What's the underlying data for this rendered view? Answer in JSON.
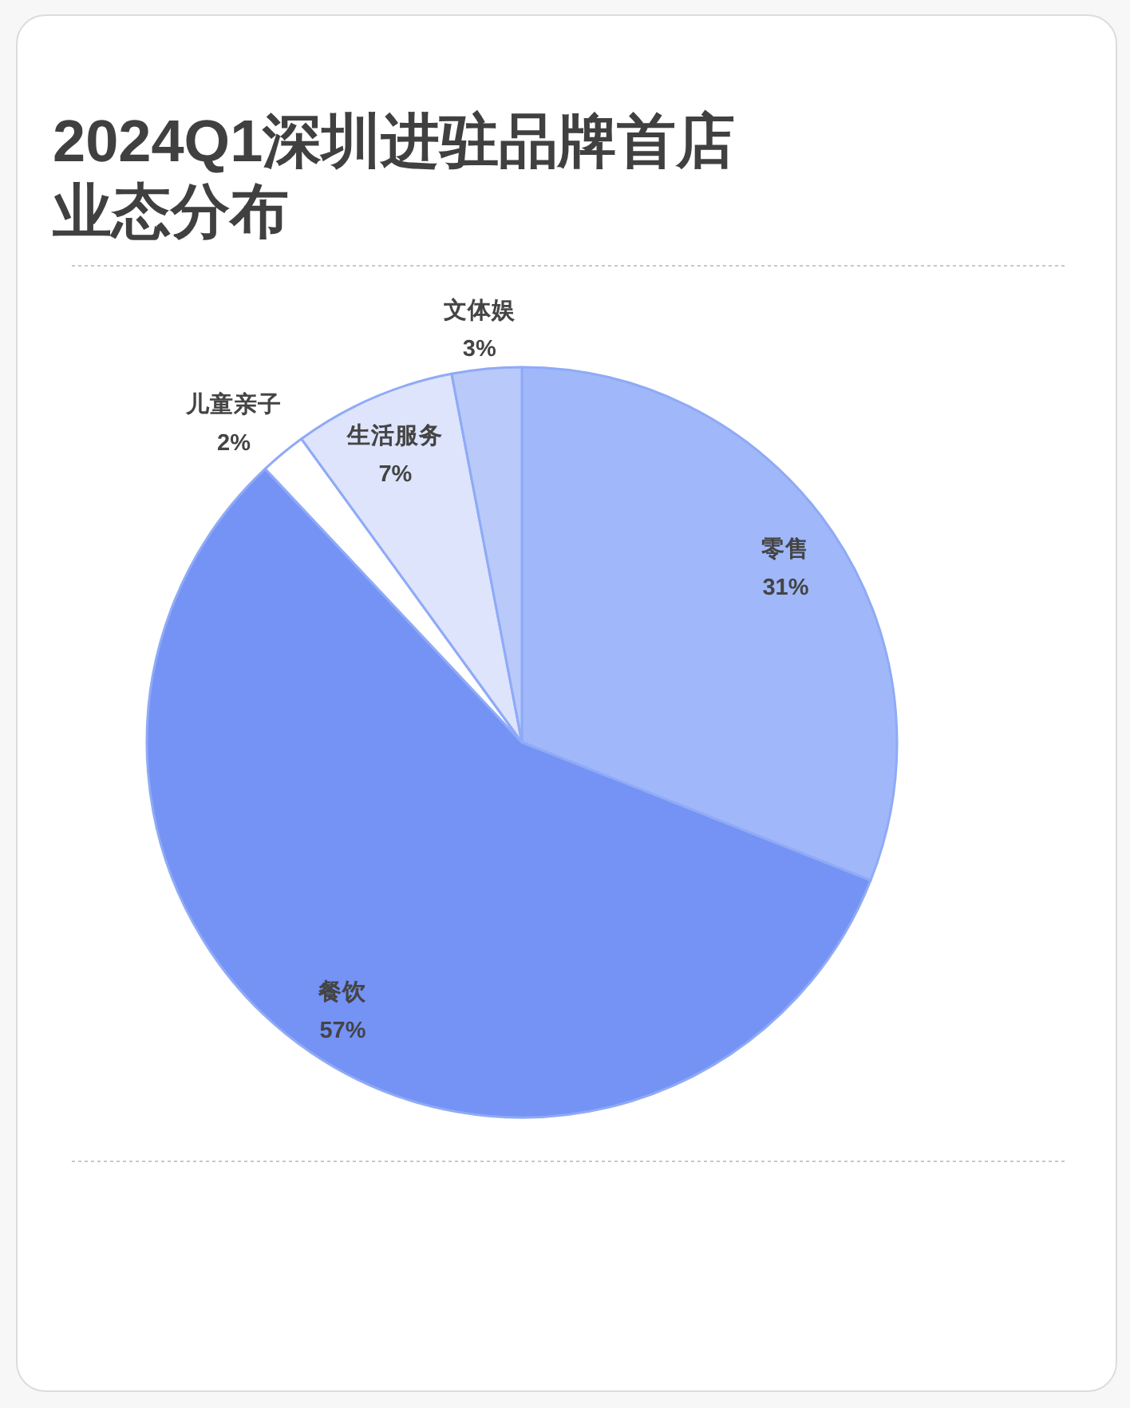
{
  "chart_data": {
    "type": "pie",
    "title": "2024Q1深圳进驻品牌首店业态分布",
    "categories": [
      "零售",
      "餐饮",
      "儿童亲子",
      "生活服务",
      "文体娱"
    ],
    "values": [
      31,
      57,
      2,
      7,
      3
    ],
    "colors": [
      "#a0b8f9",
      "#7592f5",
      "#ffffff",
      "#dde4fc",
      "#b9cafa"
    ],
    "value_labels": [
      "31%",
      "57%",
      "2%",
      "7%",
      "3%"
    ]
  }
}
